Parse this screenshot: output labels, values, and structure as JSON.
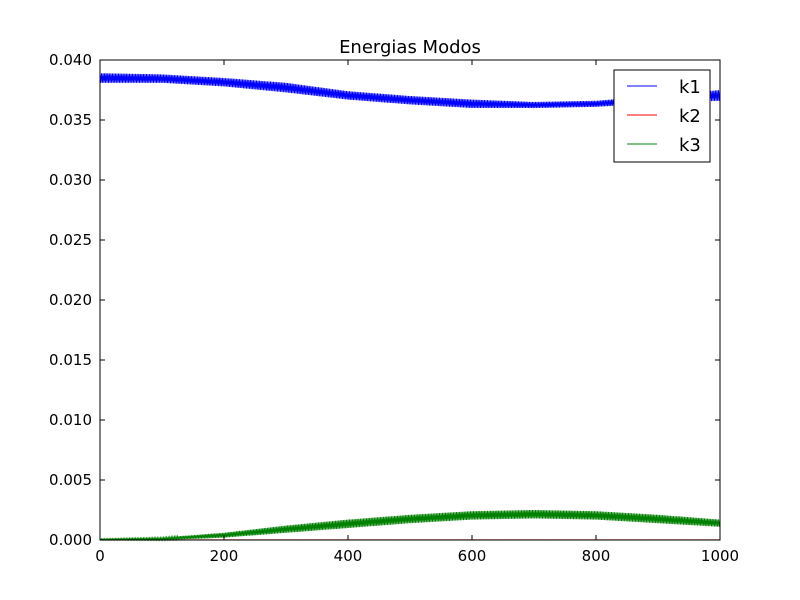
{
  "chart_data": {
    "type": "line",
    "title": "Energias Modos",
    "xlabel": "",
    "ylabel": "",
    "xlim": [
      0,
      1000
    ],
    "ylim": [
      0,
      0.04
    ],
    "xticks": [
      0,
      200,
      400,
      600,
      800,
      1000
    ],
    "xtick_labels": [
      "0",
      "200",
      "400",
      "600",
      "800",
      "1000"
    ],
    "yticks": [
      0,
      0.005,
      0.01,
      0.015,
      0.02,
      0.025,
      0.03,
      0.035,
      0.04
    ],
    "ytick_labels": [
      "0.000",
      "0.005",
      "0.010",
      "0.015",
      "0.020",
      "0.025",
      "0.030",
      "0.035",
      "0.040"
    ],
    "grid": false,
    "legend_position": "top-right",
    "series": [
      {
        "name": "k1",
        "color": "#0000ff",
        "x": [
          0,
          100,
          200,
          300,
          400,
          500,
          600,
          700,
          800,
          900,
          1000
        ],
        "y_upper": [
          0.0389,
          0.0388,
          0.0385,
          0.0381,
          0.0374,
          0.037,
          0.0367,
          0.0365,
          0.0366,
          0.037,
          0.0375
        ],
        "y_lower": [
          0.0381,
          0.0381,
          0.0378,
          0.0373,
          0.0367,
          0.0363,
          0.036,
          0.036,
          0.0361,
          0.0364,
          0.0366
        ]
      },
      {
        "name": "k2",
        "color": "#ff0000",
        "x": [
          0,
          100,
          200,
          300,
          400,
          500,
          600,
          700,
          800,
          900,
          1000
        ],
        "y_upper": [
          2e-05,
          2e-05,
          2e-05,
          2e-05,
          2e-05,
          2e-05,
          2e-05,
          2e-05,
          2e-05,
          2e-05,
          2e-05
        ],
        "y_lower": [
          0,
          0,
          0,
          0,
          0,
          0,
          0,
          0,
          0,
          0,
          0
        ]
      },
      {
        "name": "k3",
        "color": "#008000",
        "x": [
          0,
          100,
          200,
          300,
          400,
          500,
          600,
          700,
          800,
          900,
          1000
        ],
        "y_upper": [
          0.0001,
          0.0002,
          0.0006,
          0.0012,
          0.0017,
          0.0021,
          0.0024,
          0.0025,
          0.0024,
          0.0021,
          0.0017
        ],
        "y_lower": [
          0,
          0,
          0.0002,
          0.0006,
          0.001,
          0.0014,
          0.0017,
          0.0018,
          0.0017,
          0.0014,
          0.0011
        ]
      }
    ]
  }
}
